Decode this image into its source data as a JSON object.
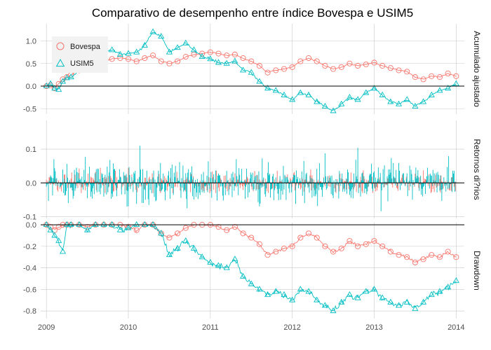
{
  "chart_data": {
    "type": "line",
    "title": "Comparativo de desempenho entre índice Bovespa e USIM5",
    "x_ticks": [
      "2009",
      "2010",
      "2011",
      "2012",
      "2013",
      "2014"
    ],
    "xlim": [
      2008.93,
      2014.1
    ],
    "legend": {
      "placement": "top-left",
      "entries": [
        {
          "name": "Bovespa",
          "marker": "circle",
          "color": "#F8766D"
        },
        {
          "name": "USIM5",
          "marker": "triangle",
          "color": "#00BFC4"
        }
      ]
    },
    "panels": [
      {
        "strip_label": "Acumulado ajustado",
        "type": "line",
        "ylim": [
          -0.62,
          1.38
        ],
        "y_ticks": [
          "1.0",
          "0.5",
          "0.0",
          "-0.5"
        ],
        "y_tick_values": [
          1.0,
          0.5,
          0.0,
          -0.5
        ],
        "hline": 0,
        "x": [
          2009.0,
          2009.05,
          2009.1,
          2009.15,
          2009.2,
          2009.25,
          2009.3,
          2009.4,
          2009.5,
          2009.6,
          2009.7,
          2009.8,
          2009.9,
          2010.0,
          2010.1,
          2010.2,
          2010.3,
          2010.4,
          2010.5,
          2010.6,
          2010.7,
          2010.8,
          2010.9,
          2011.0,
          2011.1,
          2011.2,
          2011.3,
          2011.4,
          2011.5,
          2011.6,
          2011.7,
          2011.8,
          2011.9,
          2012.0,
          2012.1,
          2012.2,
          2012.3,
          2012.4,
          2012.5,
          2012.6,
          2012.7,
          2012.8,
          2012.9,
          2013.0,
          2013.1,
          2013.2,
          2013.3,
          2013.4,
          2013.5,
          2013.6,
          2013.7,
          2013.8,
          2013.9,
          2014.0
        ],
        "series": [
          {
            "name": "Bovespa",
            "values": [
              0.0,
              0.02,
              -0.05,
              0.05,
              0.15,
              0.2,
              0.25,
              0.35,
              0.4,
              0.45,
              0.55,
              0.6,
              0.62,
              0.6,
              0.55,
              0.62,
              0.68,
              0.55,
              0.5,
              0.55,
              0.65,
              0.7,
              0.72,
              0.75,
              0.72,
              0.68,
              0.7,
              0.62,
              0.55,
              0.45,
              0.3,
              0.35,
              0.38,
              0.42,
              0.55,
              0.62,
              0.55,
              0.45,
              0.38,
              0.42,
              0.5,
              0.45,
              0.48,
              0.52,
              0.45,
              0.4,
              0.35,
              0.32,
              0.2,
              0.15,
              0.22,
              0.2,
              0.28,
              0.22
            ]
          },
          {
            "name": "USIM5",
            "values": [
              0.0,
              0.05,
              -0.05,
              -0.08,
              0.1,
              0.18,
              0.2,
              0.35,
              0.5,
              0.6,
              0.75,
              0.8,
              0.7,
              0.72,
              0.75,
              0.9,
              1.2,
              1.1,
              0.75,
              0.85,
              0.95,
              0.8,
              0.65,
              0.6,
              0.52,
              0.5,
              0.55,
              0.35,
              0.3,
              0.1,
              -0.05,
              -0.1,
              -0.2,
              -0.3,
              -0.15,
              -0.2,
              -0.35,
              -0.45,
              -0.55,
              -0.4,
              -0.25,
              -0.3,
              -0.15,
              -0.05,
              -0.2,
              -0.35,
              -0.4,
              -0.3,
              -0.45,
              -0.35,
              -0.2,
              -0.1,
              -0.05,
              0.05
            ]
          }
        ]
      },
      {
        "strip_label": "Retornos di?rios",
        "type": "bar",
        "ylim": [
          -0.105,
          0.185
        ],
        "y_ticks": [
          "0.1",
          "0.0",
          "-0.1"
        ],
        "y_tick_values": [
          0.1,
          0.0,
          -0.1
        ],
        "hline": 0,
        "return_amplitude": [
          {
            "name": "Bovespa",
            "typical_abs": 0.015,
            "max_abs": 0.05
          },
          {
            "name": "USIM5",
            "typical_abs": 0.03,
            "max_abs": 0.18
          }
        ]
      },
      {
        "strip_label": "Drawdown",
        "type": "line",
        "ylim": [
          -0.87,
          0.02
        ],
        "y_ticks": [
          "0.0",
          "-0.2",
          "-0.4",
          "-0.6",
          "-0.8"
        ],
        "y_tick_values": [
          0.0,
          -0.2,
          -0.4,
          -0.6,
          -0.8
        ],
        "hline": 0,
        "x": [
          2009.0,
          2009.05,
          2009.1,
          2009.15,
          2009.2,
          2009.25,
          2009.3,
          2009.4,
          2009.5,
          2009.6,
          2009.7,
          2009.8,
          2009.9,
          2010.0,
          2010.1,
          2010.2,
          2010.3,
          2010.4,
          2010.5,
          2010.6,
          2010.7,
          2010.8,
          2010.9,
          2011.0,
          2011.1,
          2011.2,
          2011.3,
          2011.4,
          2011.5,
          2011.6,
          2011.7,
          2011.8,
          2011.9,
          2012.0,
          2012.1,
          2012.2,
          2012.3,
          2012.4,
          2012.5,
          2012.6,
          2012.7,
          2012.8,
          2012.9,
          2013.0,
          2013.1,
          2013.2,
          2013.3,
          2013.4,
          2013.5,
          2013.6,
          2013.7,
          2013.8,
          2013.9,
          2014.0
        ],
        "series": [
          {
            "name": "Bovespa",
            "values": [
              0.0,
              -0.02,
              -0.05,
              -0.02,
              0.0,
              0.0,
              0.0,
              0.0,
              -0.02,
              0.0,
              0.0,
              0.0,
              0.0,
              -0.02,
              -0.05,
              0.0,
              0.0,
              -0.08,
              -0.12,
              -0.08,
              -0.03,
              0.0,
              0.0,
              0.0,
              -0.02,
              -0.05,
              -0.02,
              -0.08,
              -0.12,
              -0.18,
              -0.28,
              -0.25,
              -0.22,
              -0.2,
              -0.12,
              -0.08,
              -0.12,
              -0.2,
              -0.25,
              -0.22,
              -0.15,
              -0.2,
              -0.18,
              -0.15,
              -0.2,
              -0.25,
              -0.28,
              -0.3,
              -0.35,
              -0.32,
              -0.28,
              -0.3,
              -0.25,
              -0.3
            ]
          },
          {
            "name": "USIM5",
            "values": [
              0.0,
              -0.05,
              -0.1,
              -0.15,
              -0.25,
              0.0,
              0.0,
              0.0,
              -0.05,
              0.0,
              0.0,
              0.0,
              -0.05,
              -0.03,
              0.0,
              0.0,
              0.0,
              -0.08,
              -0.28,
              -0.22,
              -0.15,
              -0.22,
              -0.3,
              -0.35,
              -0.38,
              -0.4,
              -0.32,
              -0.48,
              -0.55,
              -0.6,
              -0.65,
              -0.62,
              -0.65,
              -0.7,
              -0.6,
              -0.62,
              -0.7,
              -0.75,
              -0.8,
              -0.72,
              -0.65,
              -0.68,
              -0.62,
              -0.6,
              -0.68,
              -0.72,
              -0.75,
              -0.72,
              -0.78,
              -0.72,
              -0.65,
              -0.62,
              -0.58,
              -0.52
            ]
          }
        ]
      }
    ]
  }
}
